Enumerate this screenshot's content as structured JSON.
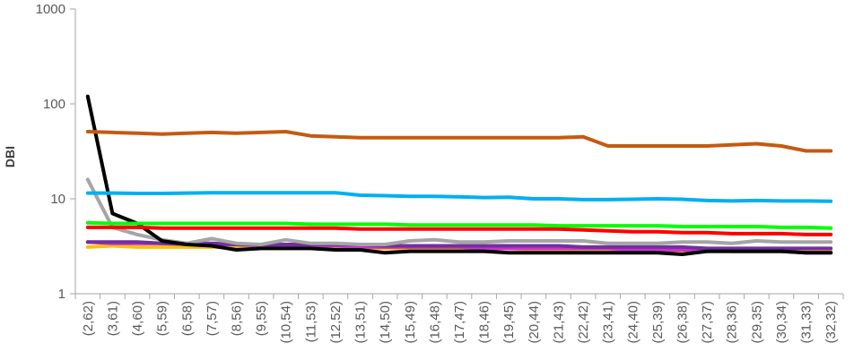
{
  "chart_data": {
    "type": "line",
    "title": "",
    "xlabel": "",
    "ylabel": "DBI",
    "yscale": "log",
    "ylim": [
      1,
      1000
    ],
    "y_ticks": [
      1,
      10,
      100,
      1000
    ],
    "y_tick_labels": [
      "1",
      "10",
      "100",
      "1000"
    ],
    "grid": false,
    "legend": "none",
    "categories": [
      "(2,62)",
      "(3,61)",
      "(4,60)",
      "(5,59)",
      "(6,58)",
      "(7,57)",
      "(8,56)",
      "(9,55)",
      "(10,54)",
      "(11,53)",
      "(12,52)",
      "(13,51)",
      "(14,50)",
      "(15,49)",
      "(16,48)",
      "(17,47)",
      "(18,46)",
      "(19,45)",
      "(20,44)",
      "(21,43)",
      "(22,42)",
      "(23,41)",
      "(24,40)",
      "(25,39)",
      "(26,38)",
      "(27,37)",
      "(28,36)",
      "(29,35)",
      "(30,34)",
      "(31,33)",
      "(32,32)"
    ],
    "series": [
      {
        "color": "#ffc000",
        "values": [
          3.1,
          3.2,
          3.1,
          3.1,
          3.1,
          3.1,
          3.1,
          3.1,
          3.1,
          3.1,
          3.1,
          3.0,
          3.0,
          3.0,
          3.0,
          3.0,
          3.0,
          3.0,
          2.9,
          2.9,
          2.9,
          2.9,
          2.9,
          2.9,
          2.8,
          2.8,
          2.8,
          2.8,
          2.8,
          2.8,
          2.8
        ]
      },
      {
        "color": "#cc33cc",
        "values": [
          3.5,
          3.4,
          3.4,
          3.4,
          3.3,
          3.3,
          3.3,
          3.2,
          3.2,
          3.2,
          3.2,
          3.1,
          3.1,
          3.1,
          3.1,
          3.1,
          3.0,
          3.0,
          3.0,
          3.0,
          3.0,
          3.0,
          2.9,
          2.9,
          2.9,
          2.9,
          2.8,
          2.8,
          2.8,
          2.7,
          2.7
        ]
      },
      {
        "color": "#7030a0",
        "values": [
          3.5,
          3.5,
          3.5,
          3.4,
          3.4,
          3.4,
          3.3,
          3.3,
          3.3,
          3.3,
          3.3,
          3.3,
          3.2,
          3.2,
          3.2,
          3.2,
          3.2,
          3.2,
          3.2,
          3.2,
          3.1,
          3.1,
          3.1,
          3.1,
          3.1,
          3.0,
          3.0,
          3.0,
          3.0,
          3.0,
          3.0
        ]
      },
      {
        "color": "#a5a5a5",
        "values": [
          16,
          5.0,
          4.2,
          3.7,
          3.4,
          3.8,
          3.4,
          3.3,
          3.7,
          3.4,
          3.4,
          3.3,
          3.3,
          3.6,
          3.7,
          3.5,
          3.5,
          3.6,
          3.6,
          3.6,
          3.6,
          3.4,
          3.4,
          3.4,
          3.5,
          3.5,
          3.4,
          3.6,
          3.5,
          3.5,
          3.5
        ]
      },
      {
        "color": "#000000",
        "values": [
          120,
          7.0,
          5.5,
          3.6,
          3.3,
          3.2,
          2.9,
          3.0,
          3.0,
          3.0,
          2.9,
          2.9,
          2.7,
          2.8,
          2.8,
          2.8,
          2.8,
          2.7,
          2.7,
          2.7,
          2.7,
          2.7,
          2.7,
          2.7,
          2.6,
          2.8,
          2.8,
          2.8,
          2.8,
          2.7,
          2.7
        ]
      },
      {
        "color": "#ff0000",
        "values": [
          5.0,
          5.0,
          5.0,
          4.9,
          4.9,
          4.9,
          4.9,
          4.9,
          4.9,
          4.9,
          4.9,
          4.8,
          4.8,
          4.8,
          4.8,
          4.8,
          4.8,
          4.8,
          4.8,
          4.8,
          4.7,
          4.6,
          4.5,
          4.5,
          4.4,
          4.4,
          4.3,
          4.3,
          4.3,
          4.2,
          4.2
        ]
      },
      {
        "color": "#00ff00",
        "values": [
          5.6,
          5.5,
          5.5,
          5.5,
          5.5,
          5.5,
          5.5,
          5.5,
          5.5,
          5.4,
          5.4,
          5.4,
          5.4,
          5.3,
          5.3,
          5.3,
          5.3,
          5.3,
          5.3,
          5.2,
          5.2,
          5.2,
          5.2,
          5.2,
          5.1,
          5.1,
          5.1,
          5.1,
          5.0,
          5.0,
          4.9
        ]
      },
      {
        "color": "#00b0f0",
        "values": [
          11.5,
          11.5,
          11.4,
          11.4,
          11.5,
          11.6,
          11.6,
          11.6,
          11.6,
          11.6,
          11.6,
          10.9,
          10.8,
          10.6,
          10.6,
          10.5,
          10.3,
          10.4,
          10.0,
          10.0,
          9.8,
          9.8,
          9.9,
          10.0,
          9.9,
          9.6,
          9.5,
          9.6,
          9.5,
          9.5,
          9.4
        ]
      },
      {
        "color": "#c55a11",
        "values": [
          51,
          50,
          49,
          48,
          49,
          50,
          49,
          50,
          51,
          46,
          45,
          44,
          44,
          44,
          44,
          44,
          44,
          44,
          44,
          44,
          45,
          36,
          36,
          36,
          36,
          36,
          37,
          38,
          36,
          32,
          32
        ]
      }
    ]
  }
}
